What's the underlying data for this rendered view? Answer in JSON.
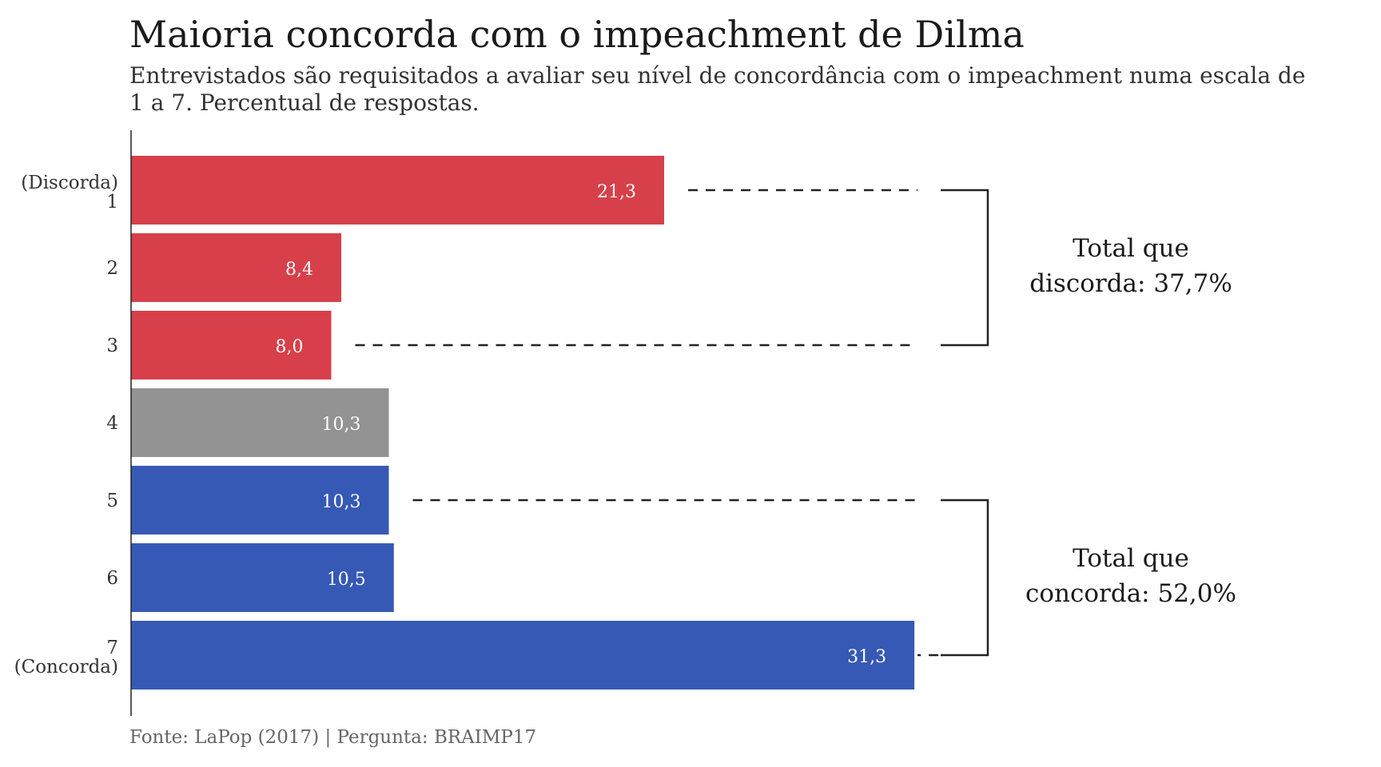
{
  "chart_data": {
    "type": "bar",
    "orientation": "horizontal",
    "title": "Maioria concorda com o impeachment de Dilma",
    "subtitle": "Entrevistados são requisitados a avaliar seu nível de concordância com o impeachment numa escala de 1 a 7. Percentual de respostas.",
    "caption": "Fonte: LaPop (2017) | Pergunta: BRAIMP17",
    "categories": [
      "1",
      "2",
      "3",
      "4",
      "5",
      "6",
      "7"
    ],
    "category_sublabels": [
      "(Discorda)",
      "",
      "",
      "",
      "",
      "",
      "(Concorda)"
    ],
    "values": [
      21.3,
      8.4,
      8.0,
      10.3,
      10.3,
      10.5,
      31.3
    ],
    "value_labels": [
      "21,3",
      "8,4",
      "8,0",
      "10,3",
      "10,3",
      "10,5",
      "31,3"
    ],
    "bar_colors": [
      "#d7404a",
      "#d7404a",
      "#d7404a",
      "#939393",
      "#3559b5",
      "#3559b5",
      "#3559b5"
    ],
    "xlim": [
      0,
      35
    ],
    "grid": false,
    "legend": "none",
    "annotations": [
      {
        "name": "discorda",
        "from_category": "1",
        "to_category": "3",
        "lines": [
          "Total que",
          "discorda: 37,7%"
        ]
      },
      {
        "name": "concorda",
        "from_category": "5",
        "to_category": "7",
        "lines": [
          "Total que",
          "concorda: 52,0%"
        ]
      }
    ]
  },
  "colors": {
    "discorda": "#d7404a",
    "neutral": "#939393",
    "concorda": "#3559b5",
    "value_label": "#ffffff",
    "axis": "#222222"
  }
}
